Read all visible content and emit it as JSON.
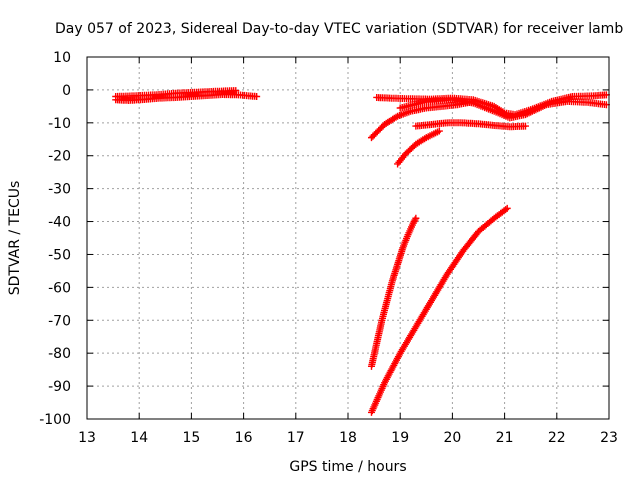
{
  "chart_data": {
    "type": "scatter",
    "title": "Day 057 of 2023, Sidereal Day-to-day VTEC variation (SDTVAR) for receiver lamb",
    "xlabel": "GPS time / hours",
    "ylabel": "SDTVAR / TECUs",
    "xlim": [
      13,
      23
    ],
    "ylim": [
      -100,
      10
    ],
    "xticks": [
      13,
      14,
      15,
      16,
      17,
      18,
      19,
      20,
      21,
      22,
      23
    ],
    "yticks": [
      10,
      0,
      -10,
      -20,
      -30,
      -40,
      -50,
      -60,
      -70,
      -80,
      -90,
      -100
    ],
    "grid": true,
    "marker": "+",
    "color": "#ff0000",
    "series": [
      {
        "x": [
          13.55,
          13.8,
          14.1,
          14.4,
          14.7,
          15.0,
          15.3,
          15.6,
          15.9,
          16.1,
          16.25
        ],
        "y": [
          -3,
          -3.2,
          -2.9,
          -2.5,
          -2.3,
          -2,
          -1.7,
          -1.4,
          -1.5,
          -1.8,
          -2
        ]
      },
      {
        "x": [
          13.55,
          13.9,
          14.3,
          14.7,
          15.1,
          15.5,
          15.85
        ],
        "y": [
          -2,
          -1.8,
          -1.5,
          -1,
          -0.7,
          -0.4,
          -0.2
        ]
      },
      {
        "x": [
          18.55,
          18.8,
          19.2,
          19.6,
          20.0,
          20.4,
          20.8,
          21.0,
          21.2,
          21.5,
          21.9,
          22.3,
          22.7,
          22.95
        ],
        "y": [
          -2.3,
          -2.5,
          -2.7,
          -2.8,
          -2.5,
          -3,
          -5,
          -7,
          -7.5,
          -6,
          -3.5,
          -2,
          -1.8,
          -1.5
        ]
      },
      {
        "x": [
          19.0,
          19.5,
          20.0,
          20.4,
          20.8,
          21.1,
          21.4,
          21.8,
          22.2,
          22.6,
          22.95
        ],
        "y": [
          -5.5,
          -3.5,
          -3,
          -4,
          -6.5,
          -8.5,
          -7.5,
          -4.5,
          -3.5,
          -3.8,
          -4.5
        ]
      },
      {
        "x": [
          18.45,
          18.7,
          18.95,
          19.2,
          19.5,
          19.8,
          20.1,
          20.4
        ],
        "y": [
          -14.5,
          -10.5,
          -8,
          -6.5,
          -5.5,
          -5,
          -4.5,
          -3.5
        ]
      },
      {
        "x": [
          19.3,
          19.6,
          19.9,
          20.2,
          20.5,
          20.8,
          21.1,
          21.4
        ],
        "y": [
          -11,
          -10.5,
          -10,
          -10,
          -10.3,
          -10.8,
          -11.2,
          -11
        ]
      },
      {
        "x": [
          18.95,
          19.1,
          19.3,
          19.5,
          19.75
        ],
        "y": [
          -22.5,
          -19.5,
          -16.5,
          -14.5,
          -12.5
        ]
      },
      {
        "x": [
          18.45,
          18.55,
          18.65,
          18.75,
          18.85,
          18.95,
          19.05,
          19.15,
          19.25,
          19.3
        ],
        "y": [
          -84,
          -77,
          -70,
          -64,
          -58,
          -53,
          -48,
          -44,
          -40.5,
          -39
        ]
      },
      {
        "x": [
          18.45,
          18.7,
          19.0,
          19.3,
          19.6,
          19.9,
          20.2,
          20.5,
          20.8,
          21.05
        ],
        "y": [
          -98,
          -89,
          -80,
          -72,
          -64,
          -56,
          -49,
          -43,
          -39,
          -36
        ]
      }
    ]
  }
}
